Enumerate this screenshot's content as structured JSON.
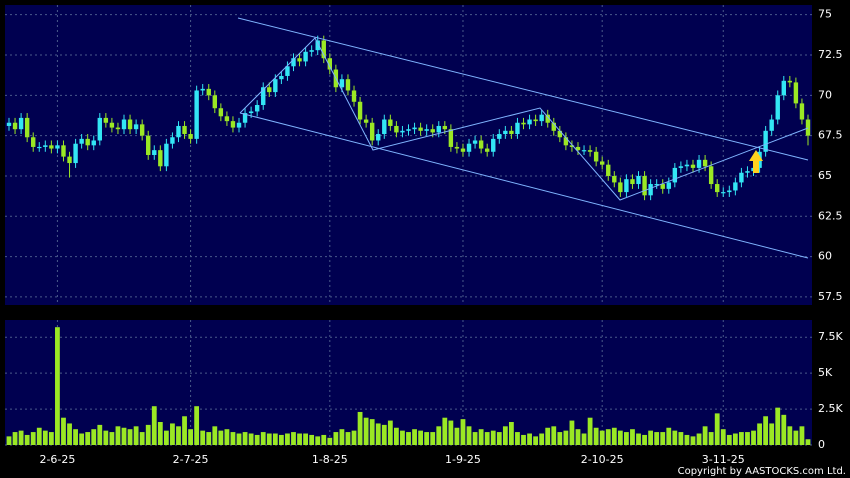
{
  "chart_data": [
    {
      "type": "candlestick",
      "categories": [
        null,
        null,
        null,
        null,
        null,
        null,
        null,
        null,
        "2-6-25",
        null,
        null,
        null,
        null,
        null,
        null,
        null,
        null,
        null,
        null,
        null,
        null,
        null,
        null,
        null,
        null,
        null,
        null,
        null,
        null,
        null,
        "2-7-25",
        null,
        null,
        null,
        null,
        null,
        null,
        null,
        null,
        null,
        null,
        null,
        null,
        null,
        null,
        null,
        null,
        null,
        null,
        null,
        null,
        null,
        null,
        "1-8-25",
        null,
        null,
        null,
        null,
        null,
        null,
        null,
        null,
        null,
        null,
        null,
        null,
        null,
        null,
        null,
        null,
        null,
        null,
        null,
        null,
        null,
        "1-9-25",
        null,
        null,
        null,
        null,
        null,
        null,
        null,
        null,
        null,
        null,
        null,
        null,
        null,
        null,
        null,
        null,
        null,
        null,
        null,
        null,
        null,
        null,
        "2-10-25",
        null,
        null,
        null,
        null,
        null,
        null,
        null,
        null,
        null,
        null,
        null,
        null,
        null,
        null,
        null,
        null,
        null,
        null,
        null,
        "3-11-25",
        null,
        null,
        null,
        null,
        null,
        null,
        null,
        null,
        null,
        null,
        null,
        null,
        null,
        null
      ],
      "open": [
        68.1,
        68.3,
        67.9,
        68.6,
        67.4,
        66.8,
        66.8,
        66.9,
        66.7,
        66.9,
        66.2,
        65.8,
        67.0,
        67.3,
        66.9,
        67.2,
        68.6,
        68.3,
        68.0,
        67.9,
        68.5,
        67.9,
        68.2,
        67.5,
        66.3,
        66.6,
        65.6,
        67.0,
        67.4,
        68.1,
        67.6,
        67.3,
        70.3,
        70.4,
        70.0,
        69.2,
        68.7,
        68.4,
        68.0,
        68.3,
        68.9,
        69.0,
        69.4,
        70.5,
        70.2,
        71.0,
        71.2,
        71.8,
        72.3,
        72.1,
        72.7,
        72.8,
        73.4,
        72.3,
        71.6,
        70.5,
        71.0,
        70.3,
        69.6,
        68.5,
        68.3,
        67.2,
        67.6,
        68.5,
        68.1,
        67.7,
        67.8,
        67.9,
        68.0,
        67.8,
        67.9,
        67.7,
        68.1,
        67.9,
        66.8,
        66.7,
        66.5,
        67.0,
        67.2,
        66.7,
        66.5,
        67.3,
        67.6,
        67.8,
        67.6,
        68.3,
        68.2,
        68.5,
        68.4,
        68.8,
        68.3,
        67.8,
        67.4,
        66.9,
        66.8,
        66.6,
        66.6,
        66.5,
        65.9,
        65.7,
        65.0,
        64.6,
        64.0,
        64.8,
        64.5,
        65.0,
        63.8,
        64.5,
        64.5,
        64.2,
        64.6,
        65.5,
        65.6,
        65.7,
        65.5,
        66.0,
        65.6,
        64.5,
        64.0,
        64.0,
        64.1,
        64.6,
        65.2,
        65.3,
        65.5,
        66.5,
        67.8,
        68.5,
        70.0,
        70.9,
        70.8,
        69.5,
        68.5
      ],
      "high": [
        68.6,
        68.6,
        68.9,
        68.9,
        67.7,
        67.1,
        67.2,
        67.2,
        67.2,
        67.2,
        66.5,
        67.3,
        67.6,
        67.6,
        67.5,
        68.9,
        68.9,
        68.6,
        68.3,
        68.8,
        68.8,
        68.5,
        68.5,
        67.8,
        66.9,
        66.9,
        67.3,
        67.7,
        68.4,
        68.4,
        67.9,
        70.6,
        70.7,
        70.7,
        70.3,
        69.5,
        69.0,
        68.7,
        68.6,
        69.2,
        69.3,
        69.7,
        70.8,
        70.8,
        71.3,
        71.5,
        72.1,
        72.6,
        72.6,
        73.0,
        73.1,
        73.7,
        73.7,
        72.6,
        71.9,
        71.3,
        71.3,
        70.6,
        69.9,
        68.8,
        68.6,
        67.9,
        68.8,
        68.8,
        68.4,
        68.1,
        68.2,
        68.3,
        68.3,
        68.2,
        68.2,
        68.4,
        68.4,
        68.2,
        67.1,
        67.0,
        67.3,
        67.5,
        67.5,
        67.0,
        67.6,
        67.9,
        68.1,
        68.1,
        68.6,
        68.6,
        68.8,
        68.8,
        69.1,
        69.1,
        68.6,
        68.1,
        67.7,
        67.2,
        67.1,
        66.9,
        66.9,
        66.8,
        66.2,
        66.0,
        65.3,
        64.9,
        65.1,
        65.1,
        65.3,
        65.3,
        64.8,
        64.8,
        64.8,
        64.9,
        65.8,
        65.9,
        66.0,
        66.0,
        66.3,
        66.3,
        65.9,
        64.8,
        64.3,
        64.4,
        64.9,
        65.5,
        65.6,
        65.8,
        66.8,
        68.1,
        68.8,
        70.3,
        71.2,
        71.2,
        71.1,
        69.8,
        68.8
      ],
      "low": [
        67.8,
        67.6,
        67.6,
        67.1,
        66.5,
        66.5,
        66.5,
        66.4,
        66.4,
        65.9,
        64.9,
        65.5,
        66.7,
        66.6,
        66.6,
        66.9,
        68.0,
        67.7,
        67.6,
        67.6,
        67.6,
        67.6,
        67.2,
        66.0,
        66.0,
        65.3,
        65.3,
        66.7,
        67.1,
        67.3,
        67.0,
        67.0,
        70.0,
        69.7,
        68.9,
        68.4,
        68.1,
        67.7,
        67.7,
        68.0,
        68.6,
        68.7,
        69.1,
        69.9,
        69.9,
        70.7,
        70.9,
        71.5,
        71.8,
        71.8,
        72.4,
        72.5,
        72.0,
        71.3,
        70.2,
        70.2,
        70.0,
        69.3,
        68.2,
        68.0,
        66.9,
        66.9,
        67.3,
        67.8,
        67.4,
        67.4,
        67.5,
        67.6,
        67.5,
        67.5,
        67.4,
        67.4,
        67.6,
        66.5,
        66.4,
        66.2,
        66.2,
        66.7,
        66.4,
        66.2,
        66.2,
        67.0,
        67.3,
        67.3,
        67.3,
        67.9,
        67.9,
        68.1,
        68.1,
        68.0,
        67.5,
        67.1,
        66.6,
        66.5,
        66.3,
        66.3,
        66.2,
        65.6,
        65.4,
        64.7,
        64.3,
        63.7,
        63.7,
        64.2,
        64.2,
        63.5,
        63.5,
        64.2,
        63.9,
        63.9,
        64.3,
        65.2,
        65.3,
        65.2,
        65.2,
        65.3,
        64.2,
        63.7,
        63.7,
        63.7,
        63.8,
        64.3,
        64.9,
        65.0,
        65.2,
        66.2,
        67.5,
        68.2,
        69.7,
        70.5,
        69.2,
        68.2,
        66.9
      ],
      "close": [
        68.3,
        67.9,
        68.6,
        67.4,
        66.8,
        66.8,
        66.9,
        66.7,
        66.9,
        66.2,
        65.8,
        67.0,
        67.3,
        66.9,
        67.2,
        68.6,
        68.3,
        68.0,
        67.9,
        68.5,
        67.9,
        68.2,
        67.5,
        66.3,
        66.6,
        65.6,
        67.0,
        67.4,
        68.1,
        67.6,
        67.3,
        70.3,
        70.4,
        70.0,
        69.2,
        68.7,
        68.4,
        68.0,
        68.3,
        68.9,
        69.0,
        69.4,
        70.5,
        70.2,
        71.0,
        71.2,
        71.8,
        72.3,
        72.1,
        72.7,
        72.8,
        73.4,
        72.3,
        71.6,
        70.5,
        71.0,
        70.3,
        69.6,
        68.5,
        68.3,
        67.2,
        67.6,
        68.5,
        68.1,
        67.7,
        67.8,
        67.9,
        68.0,
        67.8,
        67.9,
        67.7,
        68.1,
        67.9,
        66.8,
        66.7,
        66.5,
        67.0,
        67.2,
        66.7,
        66.5,
        67.3,
        67.6,
        67.8,
        67.6,
        68.3,
        68.2,
        68.5,
        68.4,
        68.8,
        68.3,
        67.8,
        67.4,
        66.9,
        66.8,
        66.6,
        66.6,
        66.5,
        65.9,
        65.7,
        65.0,
        64.6,
        64.0,
        64.8,
        64.5,
        65.0,
        63.8,
        64.5,
        64.5,
        64.2,
        64.6,
        65.5,
        65.6,
        65.7,
        65.5,
        66.0,
        65.6,
        64.5,
        64.0,
        64.0,
        64.1,
        64.6,
        65.2,
        65.3,
        65.5,
        66.5,
        67.8,
        68.5,
        70.0,
        70.9,
        70.8,
        69.5,
        68.5,
        67.5
      ],
      "up_color": "#33e6f5",
      "down_color": "#9be824",
      "ylim": [
        57,
        75.6
      ],
      "yticks": [
        57.5,
        60,
        62.5,
        65,
        67.5,
        70,
        72.5,
        75
      ],
      "grid": true
    },
    {
      "type": "bar",
      "values": [
        600,
        900,
        1000,
        700,
        900,
        1200,
        1000,
        900,
        8200,
        1900,
        1500,
        1100,
        800,
        900,
        1100,
        1400,
        1000,
        900,
        1300,
        1200,
        1100,
        1300,
        900,
        1400,
        2700,
        1600,
        1000,
        1500,
        1300,
        2000,
        1100,
        2700,
        1000,
        900,
        1300,
        1000,
        1100,
        900,
        800,
        900,
        800,
        700,
        900,
        800,
        800,
        700,
        800,
        900,
        800,
        800,
        700,
        600,
        700,
        500,
        900,
        1100,
        900,
        1000,
        2300,
        1900,
        1800,
        1500,
        1400,
        1700,
        1200,
        1000,
        900,
        1100,
        1000,
        900,
        900,
        1300,
        1900,
        1700,
        1200,
        1800,
        1300,
        900,
        1100,
        900,
        1000,
        900,
        1300,
        1600,
        900,
        700,
        800,
        600,
        800,
        1200,
        1300,
        900,
        1000,
        1700,
        1100,
        800,
        1900,
        1200,
        1000,
        1100,
        1200,
        1000,
        900,
        1100,
        800,
        700,
        1000,
        900,
        900,
        1200,
        1000,
        900,
        700,
        600,
        800,
        1300,
        900,
        2200,
        1100,
        700,
        800,
        900,
        900,
        1000,
        1500,
        2000,
        1500,
        2600,
        2100,
        1300,
        1000,
        1300,
        400
      ],
      "color": "#9be824",
      "ylim": [
        0,
        8700
      ],
      "yticks": [
        0,
        {
          "value": 2500,
          "label": "2.5K"
        },
        {
          "value": 5000,
          "label": "5K"
        },
        {
          "value": 7500,
          "label": "7.5K"
        }
      ],
      "grid": true
    }
  ],
  "copyright": "Copyright by AASTOCKS.com Ltd."
}
